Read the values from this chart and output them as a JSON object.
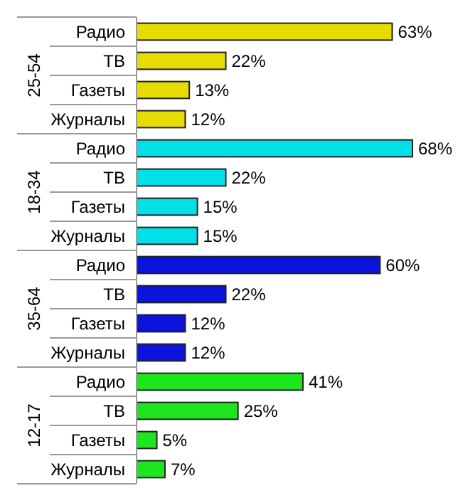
{
  "chart_data": {
    "type": "bar",
    "orientation": "horizontal",
    "data_labels": true,
    "categories": [
      "Радио",
      "ТВ",
      "Газеты",
      "Журналы",
      "Радио",
      "ТВ",
      "Газеты",
      "Журналы",
      "Радио",
      "ТВ",
      "Газеты",
      "Журналы",
      "Радио",
      "ТВ",
      "Газеты",
      "Журналы"
    ],
    "series": [
      {
        "name": "25-54",
        "color": "#e6dc00",
        "values": [
          63,
          22,
          13,
          12,
          null,
          null,
          null,
          null,
          null,
          null,
          null,
          null,
          null,
          null,
          null,
          null
        ],
        "value_labels": [
          "63%",
          "22%",
          "13%",
          "12%",
          null,
          null,
          null,
          null,
          null,
          null,
          null,
          null,
          null,
          null,
          null,
          null
        ]
      },
      {
        "name": "18-34",
        "color": "#00e0e6",
        "values": [
          null,
          null,
          null,
          null,
          68,
          22,
          15,
          15,
          null,
          null,
          null,
          null,
          null,
          null,
          null,
          null
        ],
        "value_labels": [
          null,
          null,
          null,
          null,
          "68%",
          "22%",
          "15%",
          "15%",
          null,
          null,
          null,
          null,
          null,
          null,
          null,
          null
        ]
      },
      {
        "name": "35-64",
        "color": "#0a14dc",
        "values": [
          null,
          null,
          null,
          null,
          null,
          null,
          null,
          null,
          60,
          22,
          12,
          12,
          null,
          null,
          null,
          null
        ],
        "value_labels": [
          null,
          null,
          null,
          null,
          null,
          null,
          null,
          null,
          "60%",
          "22%",
          "12%",
          "12%",
          null,
          null,
          null,
          null
        ]
      },
      {
        "name": "12-17",
        "color": "#1ee61e",
        "values": [
          null,
          null,
          null,
          null,
          null,
          null,
          null,
          null,
          null,
          null,
          null,
          null,
          41,
          25,
          5,
          7
        ],
        "value_labels": [
          null,
          null,
          null,
          null,
          null,
          null,
          null,
          null,
          null,
          null,
          null,
          null,
          "41%",
          "25%",
          "5%",
          "7%"
        ]
      }
    ]
  }
}
